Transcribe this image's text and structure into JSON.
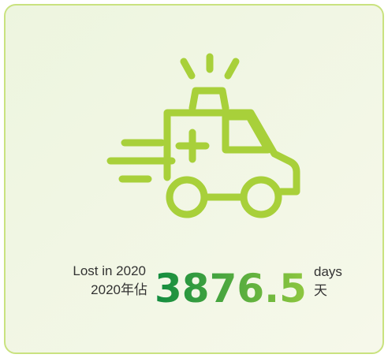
{
  "card": {
    "label_en": "Lost in 2020",
    "label_zh": "2020年佔",
    "value": 3876.5,
    "unit_en": "days",
    "unit_zh": "天"
  }
}
